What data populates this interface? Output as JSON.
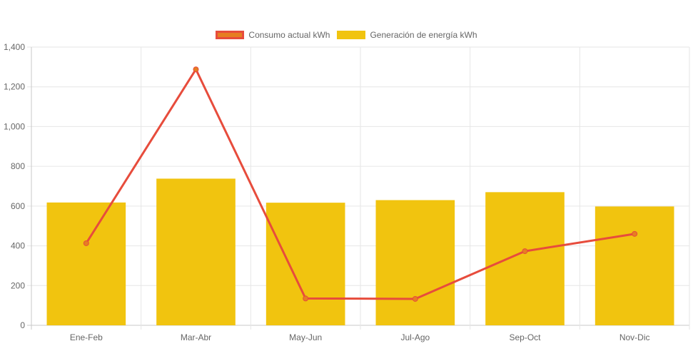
{
  "chart_data": {
    "type": "bar",
    "categories": [
      "Ene-Feb",
      "Mar-Abr",
      "May-Jun",
      "Jul-Ago",
      "Sep-Oct",
      "Nov-Dic"
    ],
    "series": [
      {
        "name": "Generación de energía kWh",
        "type": "bar",
        "values": [
          618,
          738,
          617,
          630,
          670,
          598
        ],
        "color": "#f1c40f"
      },
      {
        "name": "Consumo actual kWh",
        "type": "line",
        "values": [
          413,
          1288,
          135,
          133,
          373,
          460
        ],
        "color": "#e74c3c",
        "fill": "#e67e22"
      }
    ],
    "ylim": [
      0,
      1400
    ],
    "yticks": [
      "0",
      "200",
      "400",
      "600",
      "800",
      "1,000",
      "1,200",
      "1,400"
    ],
    "grid": true,
    "legend_position": "top"
  },
  "legend": {
    "line_label": "Consumo actual kWh",
    "bar_label": "Generación de energía kWh"
  }
}
